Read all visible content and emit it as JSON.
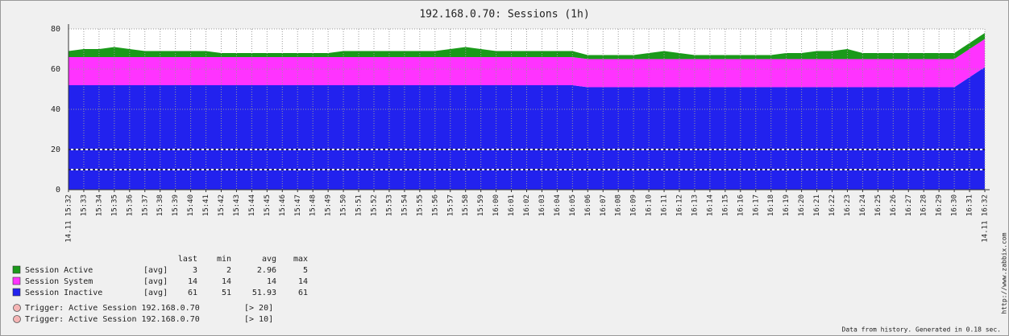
{
  "chart_data": {
    "type": "stacked-area",
    "title": "192.168.0.70: Sessions (1h)",
    "categories": [
      "14.11 15:32",
      "15:33",
      "15:34",
      "15:35",
      "15:36",
      "15:37",
      "15:38",
      "15:39",
      "15:40",
      "15:41",
      "15:42",
      "15:43",
      "15:44",
      "15:45",
      "15:46",
      "15:47",
      "15:48",
      "15:49",
      "15:50",
      "15:51",
      "15:52",
      "15:53",
      "15:54",
      "15:55",
      "15:56",
      "15:57",
      "15:58",
      "15:59",
      "16:00",
      "16:01",
      "16:02",
      "16:03",
      "16:04",
      "16:05",
      "16:06",
      "16:07",
      "16:08",
      "16:09",
      "16:10",
      "16:11",
      "16:12",
      "16:13",
      "16:14",
      "16:15",
      "16:16",
      "16:17",
      "16:18",
      "16:19",
      "16:20",
      "16:21",
      "16:22",
      "16:23",
      "16:24",
      "16:25",
      "16:26",
      "16:27",
      "16:28",
      "16:29",
      "16:30",
      "16:31",
      "14.11 16:32"
    ],
    "series": [
      {
        "name": "Session Active",
        "color": "#1a9a1a",
        "func": "[avg]",
        "last": 3,
        "min": 2,
        "avg": 2.96,
        "max": 5,
        "values": [
          3,
          4,
          4,
          5,
          4,
          3,
          3,
          3,
          3,
          3,
          2,
          2,
          2,
          2,
          2,
          2,
          2,
          2,
          3,
          3,
          3,
          3,
          3,
          3,
          3,
          4,
          5,
          4,
          3,
          3,
          3,
          3,
          3,
          3,
          2,
          2,
          2,
          2,
          3,
          4,
          3,
          2,
          2,
          2,
          2,
          2,
          2,
          3,
          3,
          4,
          4,
          5,
          3,
          3,
          3,
          3,
          3,
          3,
          3,
          3,
          3
        ]
      },
      {
        "name": "Session System",
        "color": "#ff33ff",
        "func": "[avg]",
        "last": 14,
        "min": 14,
        "avg": 14,
        "max": 14,
        "values": [
          14,
          14,
          14,
          14,
          14,
          14,
          14,
          14,
          14,
          14,
          14,
          14,
          14,
          14,
          14,
          14,
          14,
          14,
          14,
          14,
          14,
          14,
          14,
          14,
          14,
          14,
          14,
          14,
          14,
          14,
          14,
          14,
          14,
          14,
          14,
          14,
          14,
          14,
          14,
          14,
          14,
          14,
          14,
          14,
          14,
          14,
          14,
          14,
          14,
          14,
          14,
          14,
          14,
          14,
          14,
          14,
          14,
          14,
          14,
          14,
          14
        ]
      },
      {
        "name": "Session Inactive",
        "color": "#2222ee",
        "func": "[avg]",
        "last": 61,
        "min": 51,
        "avg": 51.93,
        "max": 61,
        "values": [
          52,
          52,
          52,
          52,
          52,
          52,
          52,
          52,
          52,
          52,
          52,
          52,
          52,
          52,
          52,
          52,
          52,
          52,
          52,
          52,
          52,
          52,
          52,
          52,
          52,
          52,
          52,
          52,
          52,
          52,
          52,
          52,
          52,
          52,
          51,
          51,
          51,
          51,
          51,
          51,
          51,
          51,
          51,
          51,
          51,
          51,
          51,
          51,
          51,
          51,
          51,
          51,
          51,
          51,
          51,
          51,
          51,
          51,
          51,
          56,
          61
        ]
      }
    ],
    "stats_header": [
      "last",
      "min",
      "avg",
      "max"
    ],
    "triggers": [
      {
        "name": "Trigger: Active Session 192.168.0.70",
        "value": 20,
        "label": "[> 20]",
        "color": "#222266"
      },
      {
        "name": "Trigger: Active Session 192.168.0.70",
        "value": 10,
        "label": "[> 10]",
        "color": "#222266"
      }
    ],
    "ylim": [
      0,
      80
    ],
    "yticks": [
      0,
      20,
      40,
      60,
      80
    ],
    "grid": true,
    "watermark": "http://www.zabbix.com",
    "footer": "Data from history. Generated in 0.18 sec."
  }
}
